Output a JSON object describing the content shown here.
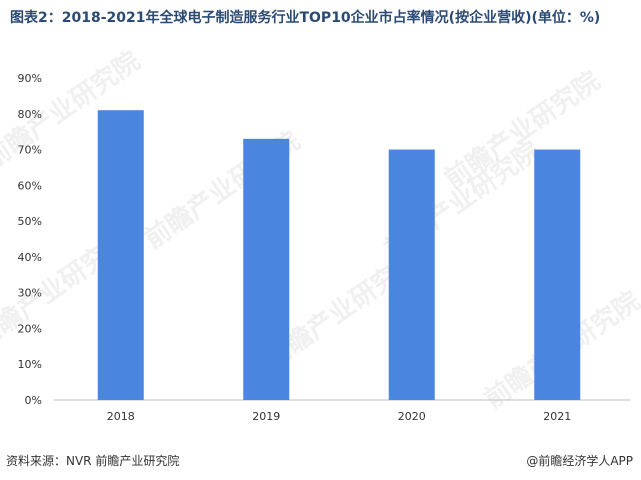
{
  "title": "图表2：2018-2021年全球电子制造服务行业TOP10企业市占率情况(按企业营收)(单位：%)",
  "footer": {
    "source": "资料来源：NVR 前瞻产业研究院",
    "brand": "@前瞻经济学人APP"
  },
  "watermark": "前瞻产业研究院",
  "colors": {
    "bar": "#4a86e0",
    "axis": "#bfbfbf",
    "text": "#333333",
    "title": "#2b4a73"
  },
  "chart_data": {
    "type": "bar",
    "categories": [
      "2018",
      "2019",
      "2020",
      "2021"
    ],
    "values": [
      81,
      73,
      70,
      70
    ],
    "ylim": [
      0,
      90
    ],
    "yticks": [
      "0%",
      "10%",
      "20%",
      "30%",
      "40%",
      "50%",
      "60%",
      "70%",
      "80%",
      "90%"
    ],
    "grid": false
  }
}
